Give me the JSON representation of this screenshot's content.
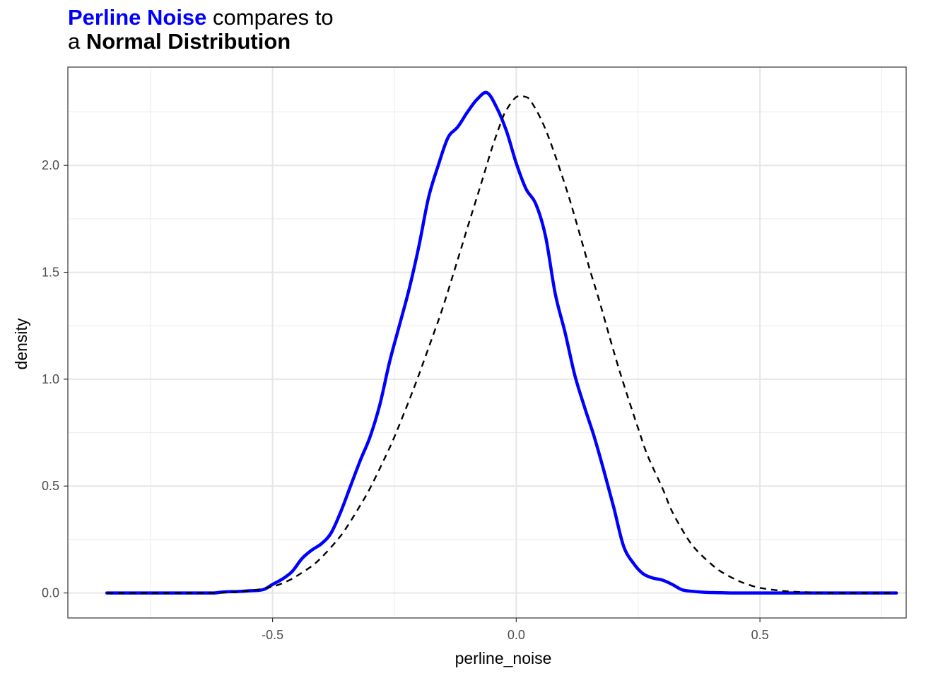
{
  "title": {
    "line1_highlight": "Perline Noise",
    "line1_rest": " compares to",
    "line2_prefix": "a ",
    "line2_bold": "Normal Distribution"
  },
  "chart_data": {
    "type": "line",
    "xlabel": "perline_noise",
    "ylabel": "density",
    "xlim": [
      -0.92,
      0.8
    ],
    "ylim": [
      -0.117,
      2.46
    ],
    "x_ticks": [
      -0.5,
      0.0,
      0.5
    ],
    "x_tick_labels": [
      "-0.5",
      "0.0",
      "0.5"
    ],
    "y_ticks": [
      0.0,
      0.5,
      1.0,
      1.5,
      2.0
    ],
    "y_tick_labels": [
      "0.0",
      "0.5",
      "1.0",
      "1.5",
      "2.0"
    ],
    "grid": true,
    "series": [
      {
        "style": "dashed",
        "color": "#000000",
        "x": [
          -0.84,
          -0.8,
          -0.75,
          -0.7,
          -0.65,
          -0.6,
          -0.55,
          -0.5,
          -0.47,
          -0.45,
          -0.42,
          -0.4,
          -0.37,
          -0.35,
          -0.32,
          -0.3,
          -0.27,
          -0.25,
          -0.22,
          -0.2,
          -0.17,
          -0.15,
          -0.12,
          -0.1,
          -0.07,
          -0.05,
          -0.03,
          -0.02,
          0.0,
          0.02,
          0.03,
          0.05,
          0.07,
          0.1,
          0.12,
          0.15,
          0.17,
          0.2,
          0.22,
          0.25,
          0.27,
          0.3,
          0.32,
          0.35,
          0.37,
          0.4,
          0.42,
          0.45,
          0.47,
          0.5,
          0.55,
          0.6,
          0.65,
          0.7,
          0.75,
          0.78
        ],
        "y": [
          0.0,
          0.0,
          0.0,
          0.0,
          0.0,
          0.002,
          0.009,
          0.03,
          0.055,
          0.08,
          0.125,
          0.165,
          0.24,
          0.3,
          0.41,
          0.49,
          0.63,
          0.73,
          0.9,
          1.02,
          1.21,
          1.34,
          1.56,
          1.71,
          1.93,
          2.08,
          2.21,
          2.26,
          2.32,
          2.32,
          2.3,
          2.22,
          2.11,
          1.91,
          1.76,
          1.52,
          1.37,
          1.13,
          0.98,
          0.77,
          0.64,
          0.49,
          0.38,
          0.26,
          0.2,
          0.135,
          0.1,
          0.063,
          0.044,
          0.024,
          0.009,
          0.003,
          0.001,
          0.0,
          0.0,
          0.0
        ]
      },
      {
        "style": "solid",
        "color": "#0000ff",
        "x": [
          -0.84,
          -0.8,
          -0.75,
          -0.7,
          -0.65,
          -0.62,
          -0.6,
          -0.57,
          -0.55,
          -0.52,
          -0.5,
          -0.48,
          -0.46,
          -0.44,
          -0.42,
          -0.4,
          -0.38,
          -0.36,
          -0.34,
          -0.32,
          -0.3,
          -0.28,
          -0.26,
          -0.24,
          -0.22,
          -0.2,
          -0.18,
          -0.16,
          -0.14,
          -0.12,
          -0.1,
          -0.08,
          -0.06,
          -0.04,
          -0.02,
          0.0,
          0.02,
          0.04,
          0.06,
          0.08,
          0.1,
          0.12,
          0.14,
          0.16,
          0.18,
          0.2,
          0.22,
          0.24,
          0.26,
          0.28,
          0.3,
          0.32,
          0.34,
          0.36,
          0.38,
          0.4,
          0.42,
          0.44,
          0.46,
          0.48,
          0.5,
          0.52,
          0.55,
          0.6,
          0.65,
          0.7,
          0.75,
          0.78
        ],
        "y": [
          0.0,
          0.0,
          0.0,
          0.0,
          0.0,
          0.0,
          0.005,
          0.007,
          0.01,
          0.015,
          0.04,
          0.065,
          0.1,
          0.16,
          0.2,
          0.23,
          0.28,
          0.38,
          0.5,
          0.62,
          0.73,
          0.88,
          1.08,
          1.25,
          1.42,
          1.62,
          1.85,
          2.0,
          2.13,
          2.18,
          2.25,
          2.31,
          2.34,
          2.27,
          2.16,
          2.01,
          1.89,
          1.82,
          1.67,
          1.4,
          1.22,
          1.02,
          0.87,
          0.73,
          0.57,
          0.4,
          0.22,
          0.14,
          0.09,
          0.07,
          0.06,
          0.04,
          0.015,
          0.008,
          0.004,
          0.002,
          0.001,
          0.0,
          0.0,
          0.0,
          0.0,
          0.0,
          0.0,
          0.0,
          0.0,
          0.0,
          0.0,
          0.0
        ]
      }
    ]
  }
}
